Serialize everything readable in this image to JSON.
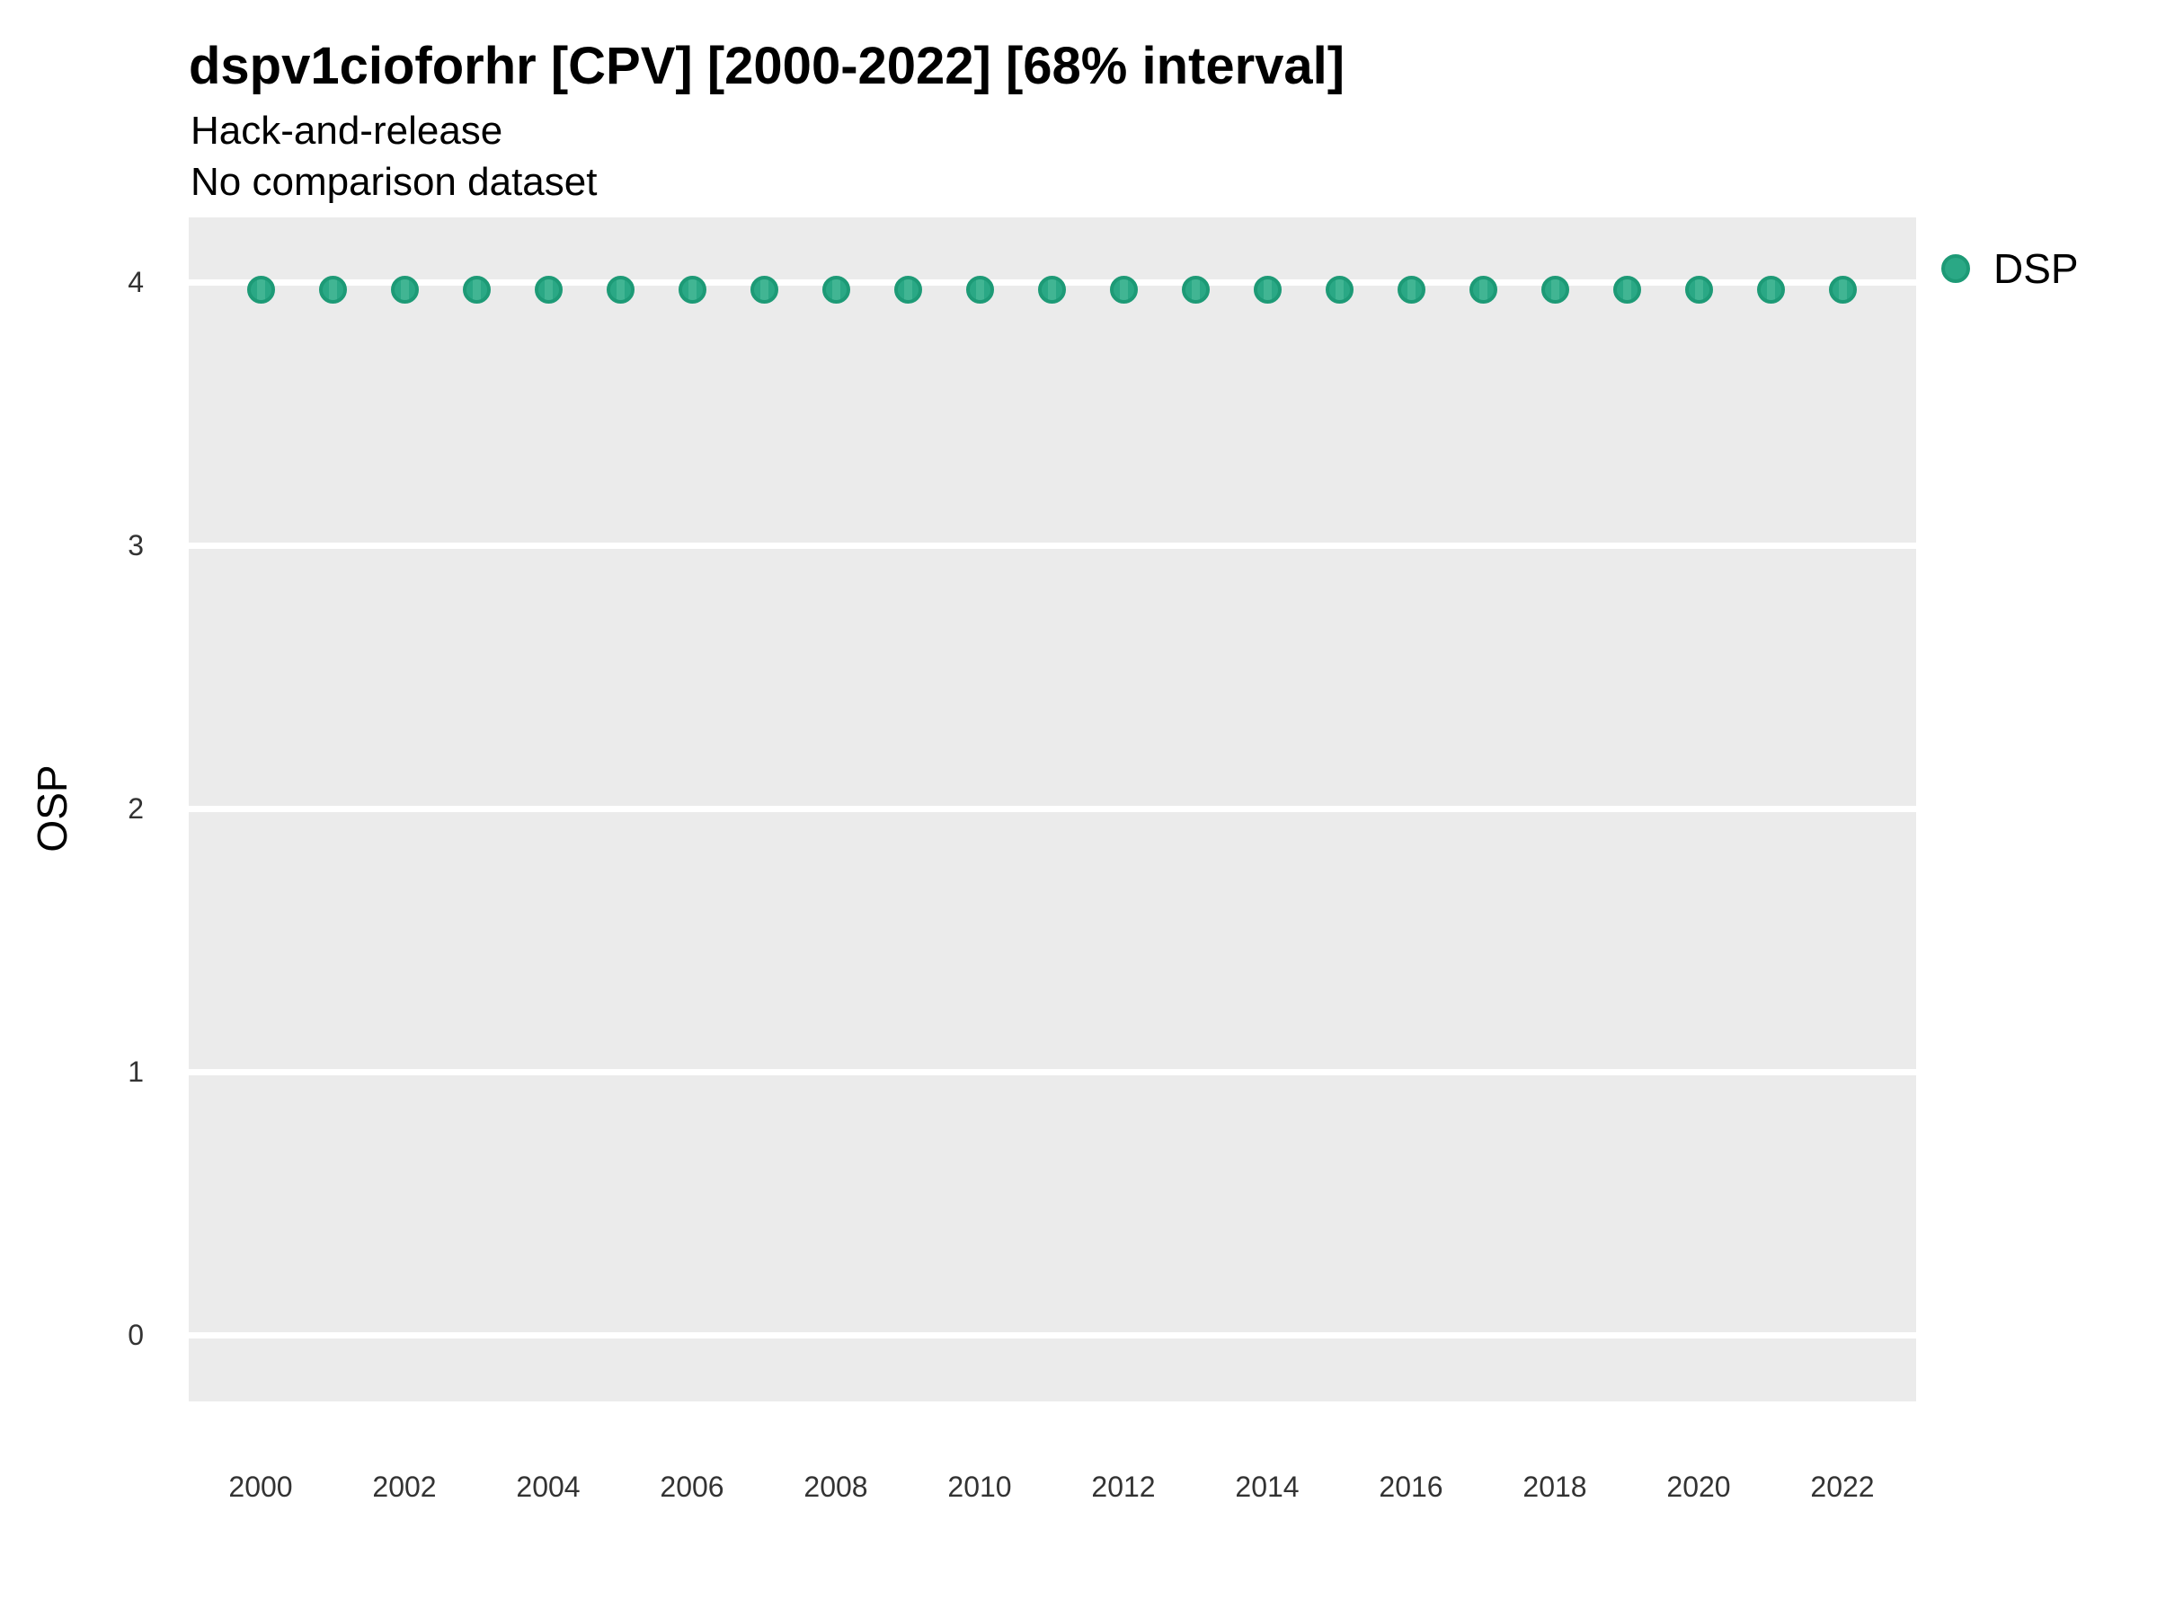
{
  "header": {
    "title": "dspv1cioforhr [CPV] [2000-2022] [68% interval]",
    "subtitle1": "Hack-and-release",
    "subtitle2": "No comparison dataset"
  },
  "legend": {
    "position": "right-top",
    "items": [
      {
        "label": "DSP"
      }
    ]
  },
  "colors": {
    "panel_background": "#ebebeb",
    "gridline": "#ffffff",
    "point_fill": "#2aa885",
    "point_border": "#1d9a76",
    "interval_stripe": "#41b593",
    "tick_text": "#333333",
    "text": "#000000"
  },
  "chart_data": {
    "type": "scatter",
    "title": "dspv1cioforhr [CPV] [2000-2022] [68% interval]",
    "subtitle": [
      "Hack-and-release",
      "No comparison dataset"
    ],
    "xlabel": "",
    "ylabel": "OSP",
    "x": [
      2000,
      2001,
      2002,
      2003,
      2004,
      2005,
      2006,
      2007,
      2008,
      2009,
      2010,
      2011,
      2012,
      2013,
      2014,
      2015,
      2016,
      2017,
      2018,
      2019,
      2020,
      2021,
      2022
    ],
    "series": [
      {
        "name": "DSP",
        "values": [
          3.97,
          3.97,
          3.97,
          3.97,
          3.97,
          3.97,
          3.97,
          3.97,
          3.97,
          3.97,
          3.97,
          3.97,
          3.97,
          3.97,
          3.97,
          3.97,
          3.97,
          3.97,
          3.97,
          3.97,
          3.97,
          3.97,
          3.97
        ]
      }
    ],
    "interval": "68% interval, narrower than marker size",
    "xticks": [
      2000,
      2002,
      2004,
      2006,
      2008,
      2010,
      2012,
      2014,
      2016,
      2018,
      2020,
      2022
    ],
    "yticks": [
      0,
      1,
      2,
      3,
      4
    ],
    "xlim": [
      1999,
      2023
    ],
    "ylim": [
      -0.25,
      4.25
    ],
    "grid": "major-horizontal-only",
    "legend_position": "right-top"
  }
}
